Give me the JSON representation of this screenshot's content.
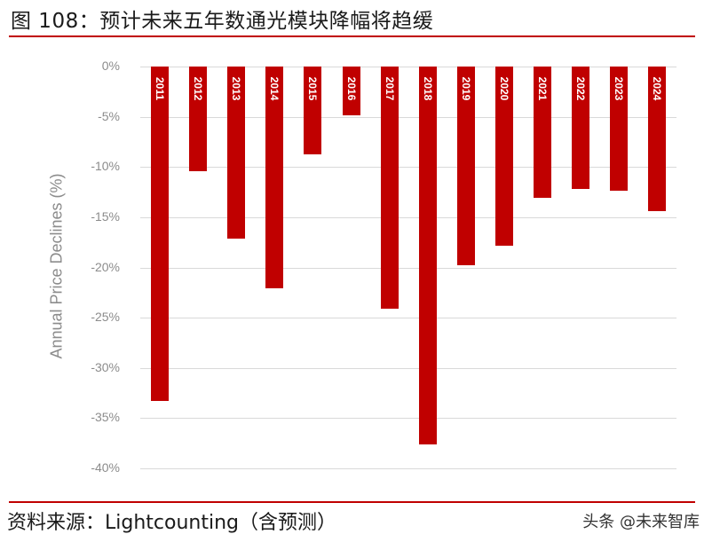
{
  "header": {
    "title": "图 108：预计未来五年数通光模块降幅将趋缓"
  },
  "footer": {
    "source": "资料来源：Lightcounting（含预测）",
    "watermark": "头条 @未来智库"
  },
  "colors": {
    "bar": "#c00000",
    "rule": "#c00000",
    "grid": "#d9d9d9",
    "axis_text": "#8c8c8c"
  },
  "chart_data": {
    "type": "bar",
    "title": "图 108：预计未来五年数通光模块降幅将趋缓",
    "xlabel": "",
    "ylabel": "Annual Price Declines (%)",
    "ylim": [
      -40,
      0
    ],
    "yticks": [
      "0%",
      "-5%",
      "-10%",
      "-15%",
      "-20%",
      "-25%",
      "-30%",
      "-35%",
      "-40%"
    ],
    "grid": true,
    "legend": null,
    "categories": [
      "2011",
      "2012",
      "2013",
      "2014",
      "2015",
      "2016",
      "2017",
      "2018",
      "2019",
      "2020",
      "2021",
      "2022",
      "2023",
      "2024"
    ],
    "values": [
      -33.3,
      -10.4,
      -17.1,
      -22.1,
      -8.7,
      -4.9,
      -24.1,
      -37.6,
      -19.8,
      -17.8,
      -13.1,
      -12.2,
      -12.4,
      -14.4
    ],
    "category_labels_position": "inside-bar-top-rotated",
    "source": "Lightcounting（含预测）"
  }
}
